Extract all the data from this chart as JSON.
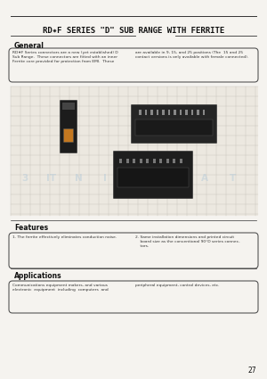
{
  "bg_color": "#f5f3ef",
  "title": "RD✷F SERIES \"D\" SUB RANGE WITH FERRITE",
  "section_general": "General",
  "general_text_col1": "RD✷F Series connectors are a new (yet established) D\nSub Range.  These connectors are fitted with an inner\nFerrite core provided for protection from EMI.  These",
  "general_text_col2": "are available in 9, 15, and 25 positions (The  15 and 25\ncontact versions is only available with female connected).",
  "section_features": "Features",
  "features_text_col1": "1. The ferrite effectively eliminates conduction noise.",
  "features_text_col2": "2. Same installation dimensions and printed circuit\n    board size as the conventional 90°D series connec-\n    tors.",
  "section_applications": "Applications",
  "applications_text_col1": "Communications equipment makers, and various\nelectronic  equipment  including  computers  and",
  "applications_text_col2": "peripheral equipment, control devices, etc.",
  "page_number": "27",
  "line_color": "#333333",
  "text_color": "#111111",
  "gray_text": "#333333",
  "box_edge_color": "#555555"
}
